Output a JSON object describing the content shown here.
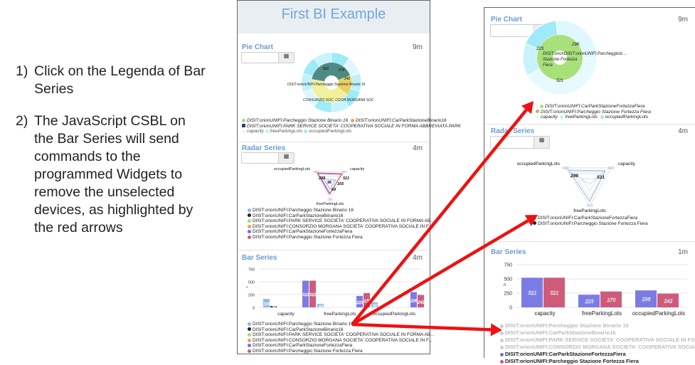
{
  "instructions": [
    {
      "num": "1)",
      "text": "Click on the Legenda of Bar Series"
    },
    {
      "num": "2)",
      "text": "The JavaScript CSBL on the Bar Series will send commands to the programmed Widgets to remove the unselected devices, as highlighted by the red arrows"
    }
  ],
  "dashboard_before": {
    "title": "First BI Example",
    "pie": {
      "title": "Pie Chart",
      "time": "9m",
      "legend": [
        "DISIT:orionUNIFI:Parcheggio Stazione Binario 16",
        "DISIT:orionUNIFI:CarParkStazioneBinario16",
        "DISIT:orionUNIFI:PARK SERVICE SOCIETA' COOPERATIVA SOCIALE IN FORMA ABBREVIATA PARK",
        "capacity",
        "freeParkingLots",
        "occupiedParkingLots"
      ],
      "labels": [
        "521",
        "279",
        "242",
        "DISIT:orionUNIFI:Parcheggio Stazione Binario 16",
        "CONSORZIO SOC. COOR MORGANA SOC."
      ]
    },
    "radar": {
      "title": "Radar Series",
      "time": "4m",
      "axes": [
        "occupiedParkingLots",
        "capacity",
        "freeParkingLots"
      ],
      "axis_max": [
        "600",
        "600",
        "480"
      ],
      "labels": [
        "298",
        "521",
        "96",
        "165",
        "69"
      ]
    },
    "bar": {
      "title": "Bar Series",
      "time": "4m",
      "yunit": "n"
    },
    "legend": [
      "DISIT:orionUNIFI:Parcheggio Stazione Binario 16",
      "DISIT:orionUNIFI:CarParkStazioneBinario16",
      "DISIT:orionUNIFI:PARK SERVICE SOCIETA' COOPERATIVA SOCIALE IN FORMA AB...",
      "DISIT:orionUNIFI:CONSORZIO MORGANA SOCIETA' COOPERATIVA SOCIALE IN F...",
      "DISIT:orionUNIFI:CarParkStazioneFortezzaFiera",
      "DISIT:orionUNIFI:Parcheggio Stazione Fortezza Fiera"
    ],
    "legend_colors": [
      "#8fb8e8",
      "#222222",
      "#9be07a",
      "#e8a050",
      "#6f6fe0",
      "#d05a7a"
    ]
  },
  "dashboard_after": {
    "pie": {
      "title": "Pie Chart",
      "time": "9m",
      "center_label": "DISIT:orionDISIT:orionUNIFI:Parcheggiotz... Stazione Fortezza Fiera",
      "legend": [
        "DISIT:orionUNIFI:CarParkStazioneFortezzaFiera",
        "DISIT:orionUNIFI:Parcheggio Stazione Fortezza Fiera",
        "capacity",
        "freeParkingLots",
        "occupiedParkingLots"
      ],
      "legend_colors": [
        "#a8e07a",
        "#e0a060",
        "#dff8ff",
        "#bff0fb",
        "#9eeaf9"
      ]
    },
    "radar": {
      "title": "Radar Series",
      "time": "4m",
      "axes": [
        "occupiedParkingLots",
        "capacity",
        "freeParkingLots"
      ],
      "axis_max": [
        "400",
        "600",
        "320"
      ],
      "legend": [
        "DISIT:orionUNIFI:CarParkStazioneFortezzaFiera",
        "DISIT:orionUNIFI:Parcheggio Stazione Fortezza Fiera"
      ],
      "legend_colors": [
        "#8fb8e8",
        "#222222"
      ]
    },
    "bar": {
      "title": "Bar Series",
      "time": "1m",
      "yunit": "n"
    },
    "legend": [
      "DISIT:orionUNIFI:Parcheggio Stazione Binario 16",
      "DISIT:orionUNIFI:CarParkStazioneBinario16",
      "DISIT:orionUNIFI:PARK SERVICE SOCIETA' COOPERATIVA SOCIALE IN FORMA AB...",
      "DISIT:orionUNIFI:CONSORZIO MORGANA SOCIETA' COOPERATIVA SOCIALE IN F...",
      "DISIT:orionUNIFI:CarParkStazioneFortezzaFiera",
      "DISIT:orionUNIFI:Parcheggio Stazione Fortezza Fiera"
    ],
    "legend_active": [
      false,
      false,
      false,
      false,
      true,
      true
    ],
    "legend_colors": [
      "#cccccc",
      "#cccccc",
      "#cccccc",
      "#cccccc",
      "#6f6fe0",
      "#d05a7a"
    ]
  },
  "chart_data": [
    {
      "type": "bar",
      "title": "Bar Series",
      "ylabel": "n",
      "ylim": [
        0,
        750
      ],
      "yticks": [
        "0",
        "250",
        "500",
        "750"
      ],
      "categories": [
        "capacity",
        "freeParkingLots",
        "occupiedParkingLots"
      ],
      "series": [
        {
          "name": "DISIT:orionUNIFI:Parcheggio Stazione Binario 16",
          "color": "#8fb8e8",
          "values": [
            165,
            69,
            96
          ]
        },
        {
          "name": "DISIT:orionUNIFI:CarParkStazioneBinario16",
          "color": "#222222",
          "values": [
            26,
            0,
            null
          ]
        },
        {
          "name": "DISIT:orionUNIFI:PARK SERVICE SOCIETA' COOPERATIVA SOCIALE IN FORMA AB...",
          "color": "#9be07a",
          "values": [
            null,
            null,
            null
          ]
        },
        {
          "name": "DISIT:orionUNIFI:CONSORZIO MORGANA SOCIETA' COOPERATIVA SOCIALE IN F...",
          "color": "#e8a050",
          "values": [
            null,
            null,
            null
          ]
        },
        {
          "name": "DISIT:orionUNIFI:CarParkStazioneFortezzaFiera",
          "color": "#7b7be6",
          "values": [
            521,
            223,
            298
          ]
        },
        {
          "name": "DISIT:orionUNIFI:Parcheggio Stazione Fortezza Fiera",
          "color": "#d05a7a",
          "values": [
            521,
            279,
            242
          ]
        }
      ]
    },
    {
      "type": "bar",
      "title": "Bar Series",
      "ylabel": "n",
      "ylim": [
        0,
        750
      ],
      "yticks": [
        "0",
        "250",
        "500",
        "750"
      ],
      "categories": [
        "capacity",
        "freeParkingLots",
        "occupiedParkingLots"
      ],
      "series": [
        {
          "name": "DISIT:orionUNIFI:CarParkStazioneFortezzaFiera",
          "color": "#7b7be6",
          "values": [
            521,
            223,
            298
          ]
        },
        {
          "name": "DISIT:orionUNIFI:Parcheggio Stazione Fortezza Fiera",
          "color": "#d05a7a",
          "values": [
            521,
            279,
            242
          ]
        }
      ]
    }
  ],
  "arrow_color": "#ee1111"
}
